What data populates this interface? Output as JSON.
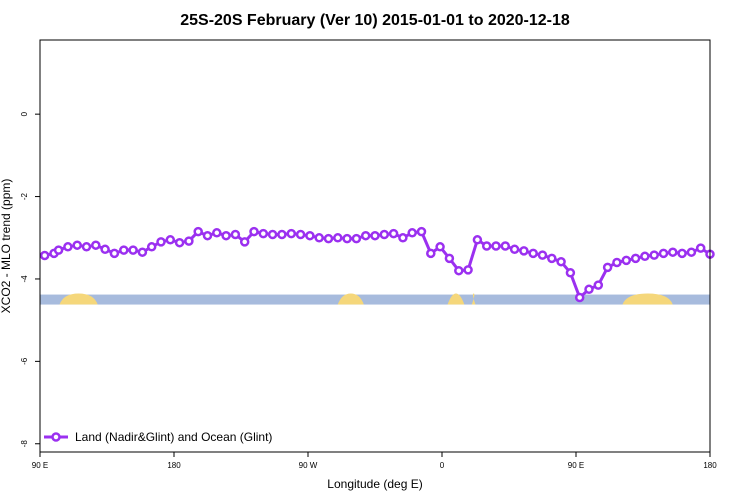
{
  "chart_data": {
    "type": "line",
    "title": "25S-20S February (Ver 10)   2015-01-01 to 2020-12-18",
    "xlabel": "Longitude (deg E)",
    "ylabel": "XCO2 - MLO trend (ppm)",
    "xlim": [
      90,
      450
    ],
    "ylim": [
      -8.2,
      1.8
    ],
    "x_ticks": [
      {
        "value": 90,
        "label": "90 E"
      },
      {
        "value": 162,
        "label": "180"
      },
      {
        "value": 234,
        "label": "90 W"
      },
      {
        "value": 306,
        "label": "0"
      },
      {
        "value": 378,
        "label": "90 E"
      },
      {
        "value": 450,
        "label": "180"
      }
    ],
    "y_ticks": [
      {
        "value": 0,
        "label": "0"
      },
      {
        "value": -2,
        "label": "-2"
      },
      {
        "value": -4,
        "label": "-4"
      },
      {
        "value": -6,
        "label": "-6"
      },
      {
        "value": -8,
        "label": "-8"
      }
    ],
    "series": [
      {
        "name": "Land (Nadir&Glint) and Ocean (Glint)",
        "color": "#9B30F0",
        "x": [
          92.5,
          97.5,
          100,
          105,
          110,
          115,
          120,
          125,
          130,
          135,
          140,
          145,
          150,
          155,
          160,
          165,
          170,
          175,
          180,
          185,
          190,
          195,
          200,
          205,
          210,
          215,
          220,
          225,
          230,
          235,
          240,
          245,
          250,
          255,
          260,
          265,
          270,
          275,
          280,
          285,
          290,
          295,
          300,
          305,
          310,
          315,
          320,
          325,
          330,
          335,
          340,
          345,
          350,
          355,
          360,
          365,
          370,
          375,
          380,
          385,
          390,
          395,
          400,
          405,
          410,
          415,
          420,
          425,
          430,
          435,
          440,
          445,
          450
        ],
        "values": [
          -3.43,
          -3.38,
          -3.3,
          -3.22,
          -3.18,
          -3.22,
          -3.18,
          -3.28,
          -3.38,
          -3.3,
          -3.3,
          -3.35,
          -3.22,
          -3.1,
          -3.05,
          -3.12,
          -3.08,
          -2.85,
          -2.95,
          -2.88,
          -2.95,
          -2.92,
          -3.1,
          -2.85,
          -2.9,
          -2.92,
          -2.92,
          -2.9,
          -2.92,
          -2.95,
          -3.0,
          -3.02,
          -3.0,
          -3.02,
          -3.02,
          -2.95,
          -2.95,
          -2.92,
          -2.9,
          -3.0,
          -2.88,
          -2.85,
          -3.38,
          -3.22,
          -3.5,
          -3.8,
          -3.78,
          -3.05,
          -3.2,
          -3.2,
          -3.2,
          -3.28,
          -3.32,
          -3.38,
          -3.42,
          -3.5,
          -3.58,
          -3.85,
          -4.45,
          -4.25,
          -4.15,
          -3.72,
          -3.6,
          -3.55,
          -3.5,
          -3.45,
          -3.42,
          -3.38,
          -3.35,
          -3.38,
          -3.35,
          -3.25,
          -3.4
        ]
      }
    ],
    "legend": {
      "position": "bottom-left"
    },
    "surface_band": {
      "value": -4.5,
      "ocean_color": "#A7BBDD",
      "land_color": "#F5D77B"
    }
  }
}
